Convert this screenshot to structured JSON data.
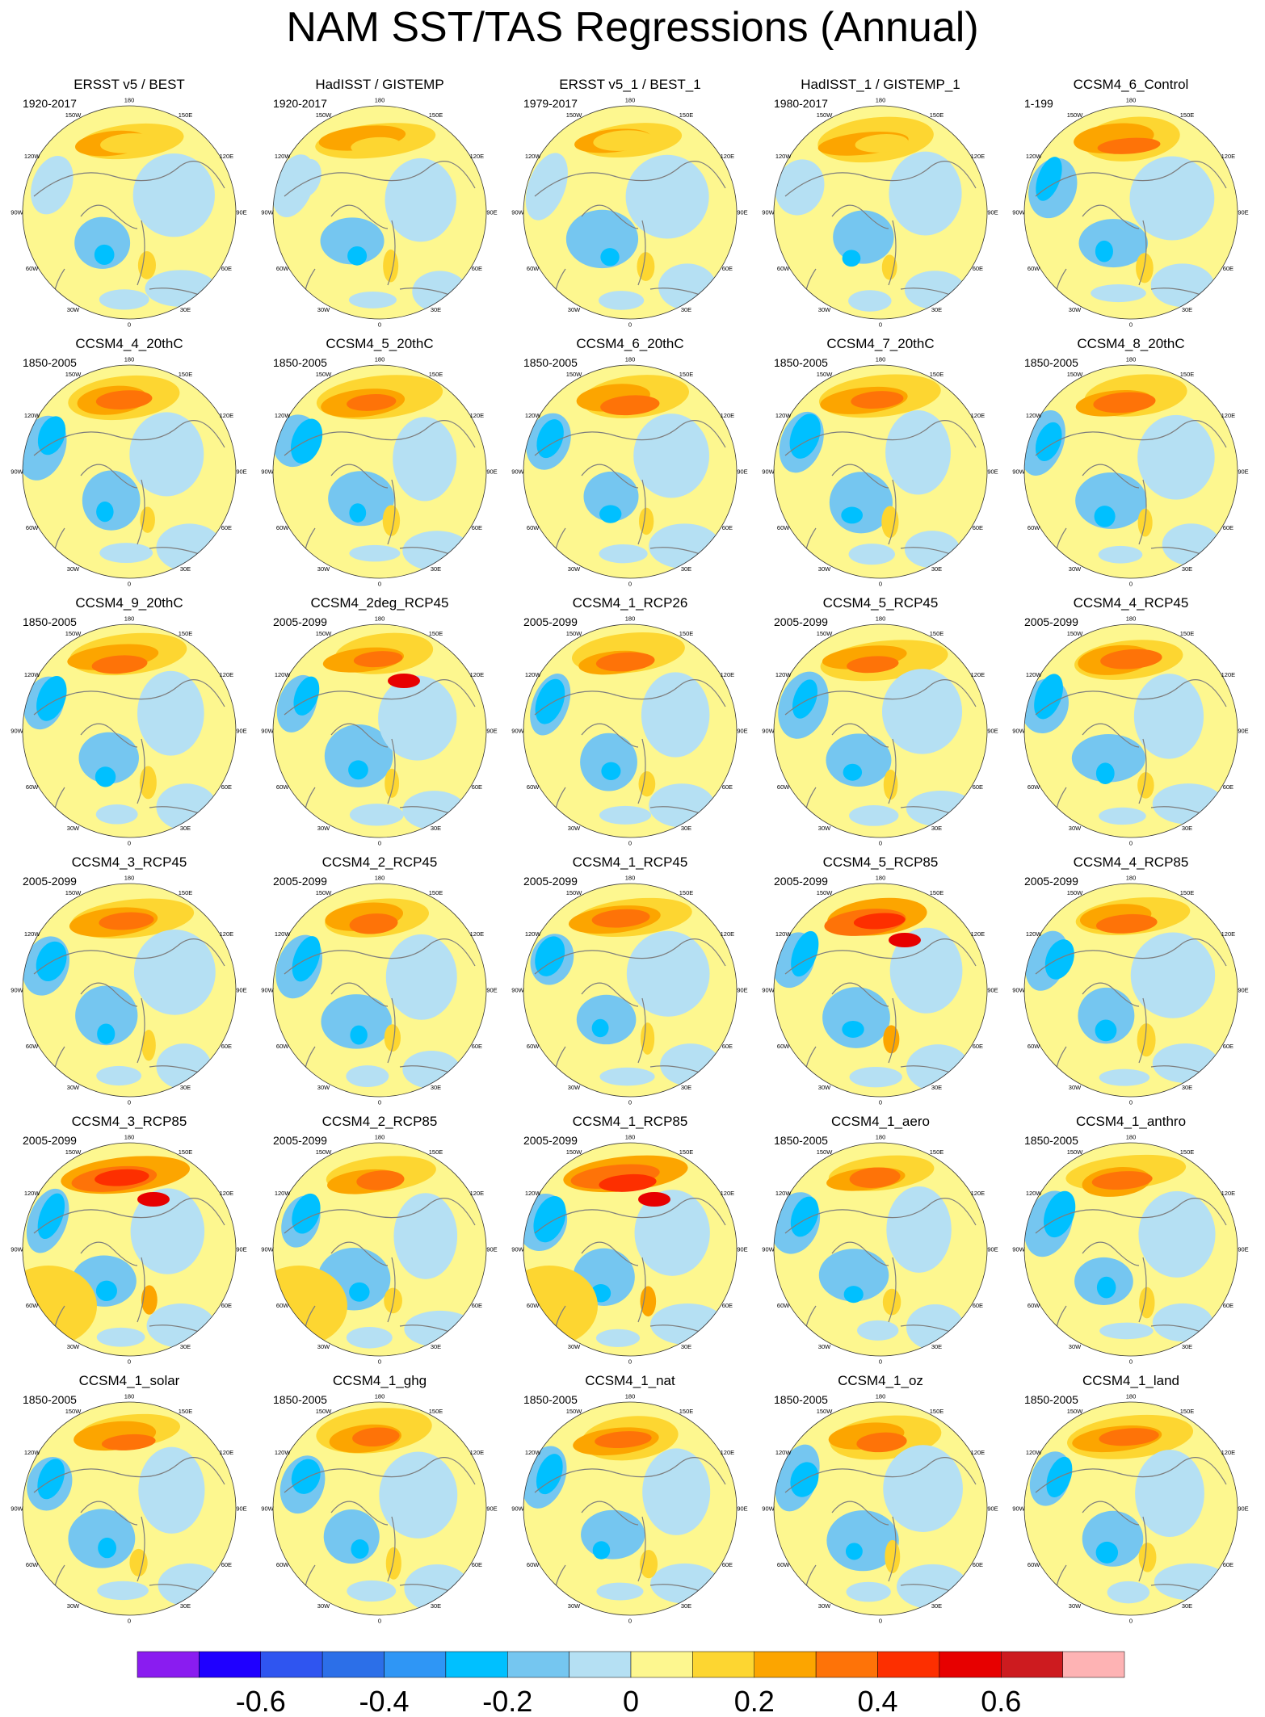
{
  "title": "NAM SST/TAS Regressions (Annual)",
  "panels": [
    {
      "title": "ERSST v5 / BEST",
      "period": "1920-2017"
    },
    {
      "title": "HadISST / GISTEMP",
      "period": "1920-2017"
    },
    {
      "title": "ERSST v5_1 / BEST_1",
      "period": "1979-2017"
    },
    {
      "title": "HadISST_1 / GISTEMP_1",
      "period": "1980-2017"
    },
    {
      "title": "CCSM4_6_Control",
      "period": "1-199"
    },
    {
      "title": "CCSM4_4_20thC",
      "period": "1850-2005"
    },
    {
      "title": "CCSM4_5_20thC",
      "period": "1850-2005"
    },
    {
      "title": "CCSM4_6_20thC",
      "period": "1850-2005"
    },
    {
      "title": "CCSM4_7_20thC",
      "period": "1850-2005"
    },
    {
      "title": "CCSM4_8_20thC",
      "period": "1850-2005"
    },
    {
      "title": "CCSM4_9_20thC",
      "period": "1850-2005"
    },
    {
      "title": "CCSM4_2deg_RCP45",
      "period": "2005-2099"
    },
    {
      "title": "CCSM4_1_RCP26",
      "period": "2005-2099"
    },
    {
      "title": "CCSM4_5_RCP45",
      "period": "2005-2099"
    },
    {
      "title": "CCSM4_4_RCP45",
      "period": "2005-2099"
    },
    {
      "title": "CCSM4_3_RCP45",
      "period": "2005-2099"
    },
    {
      "title": "CCSM4_2_RCP45",
      "period": "2005-2099"
    },
    {
      "title": "CCSM4_1_RCP45",
      "period": "2005-2099"
    },
    {
      "title": "CCSM4_5_RCP85",
      "period": "2005-2099"
    },
    {
      "title": "CCSM4_4_RCP85",
      "period": "2005-2099"
    },
    {
      "title": "CCSM4_3_RCP85",
      "period": "2005-2099"
    },
    {
      "title": "CCSM4_2_RCP85",
      "period": "2005-2099"
    },
    {
      "title": "CCSM4_1_RCP85",
      "period": "2005-2099"
    },
    {
      "title": "CCSM4_1_aero",
      "period": "1850-2005"
    },
    {
      "title": "CCSM4_1_anthro",
      "period": "1850-2005"
    },
    {
      "title": "CCSM4_1_solar",
      "period": "1850-2005"
    },
    {
      "title": "CCSM4_1_ghg",
      "period": "1850-2005"
    },
    {
      "title": "CCSM4_1_nat",
      "period": "1850-2005"
    },
    {
      "title": "CCSM4_1_oz",
      "period": "1850-2005"
    },
    {
      "title": "CCSM4_1_land",
      "period": "1850-2005"
    }
  ],
  "longitude_labels": [
    "180",
    "150E",
    "120E",
    "90E",
    "60E",
    "30E",
    "0",
    "30W",
    "60W",
    "90W",
    "120W",
    "150W"
  ],
  "chart_data": {
    "type": "heatmap",
    "projection": "polar stereographic, Northern Hemisphere",
    "layout": {
      "rows": 6,
      "columns": 5
    },
    "colorbar": {
      "orientation": "horizontal",
      "levels": [
        -0.7,
        -0.6,
        -0.5,
        -0.4,
        -0.3,
        -0.2,
        -0.1,
        0,
        0.1,
        0.2,
        0.3,
        0.4,
        0.5,
        0.6,
        0.7
      ],
      "colors": [
        "#8a1cf0",
        "#1f00ff",
        "#2f55f0",
        "#2c6fe8",
        "#2f96f5",
        "#00c0ff",
        "#75c6f0",
        "#b5e0f3",
        "#fdf78f",
        "#fdd631",
        "#fca500",
        "#fe7308",
        "#fd2f00",
        "#e70000",
        "#cd1b1f",
        "#feb3b4"
      ],
      "tick_values": [
        -0.6,
        -0.4,
        -0.2,
        0,
        0.2,
        0.4,
        0.6
      ],
      "tick_labels": [
        "-0.6",
        "-0.4",
        "-0.2",
        "0",
        "0.2",
        "0.4",
        "0.6"
      ]
    }
  }
}
